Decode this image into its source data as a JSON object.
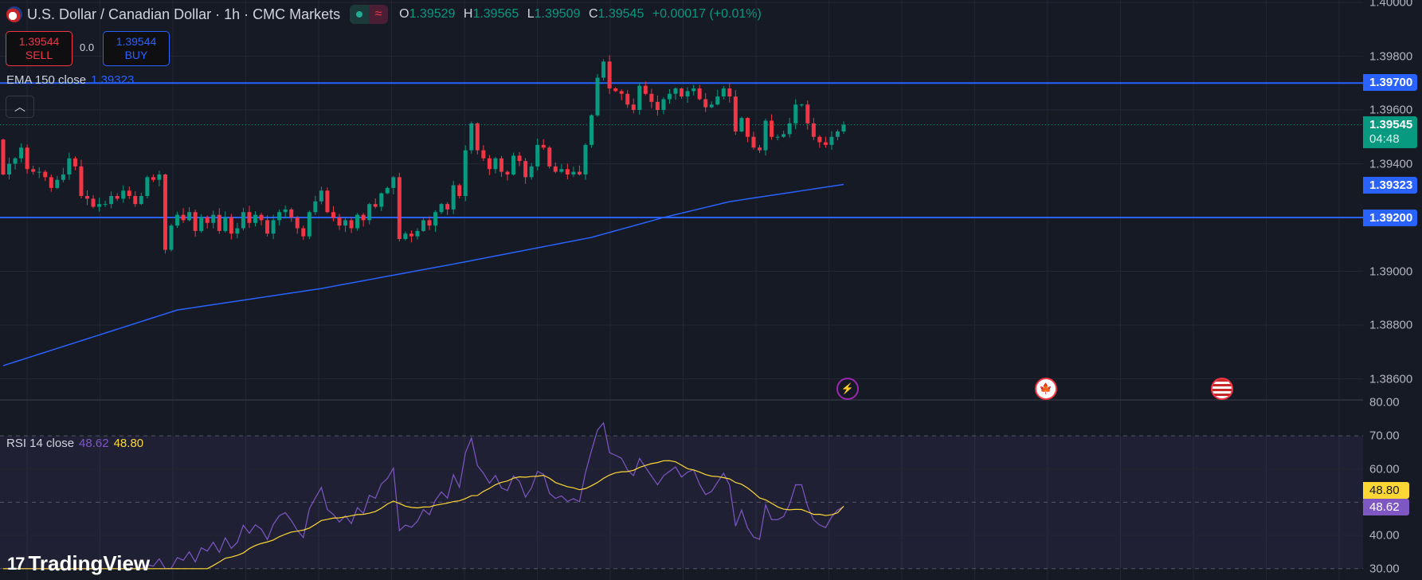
{
  "header": {
    "title": "U.S. Dollar / Canadian Dollar · 1h · CMC Markets",
    "ohlc": {
      "o_label": "O",
      "o": "1.39529",
      "h_label": "H",
      "h": "1.39565",
      "l_label": "L",
      "l": "1.39509",
      "c_label": "C",
      "c": "1.39545",
      "change": "+0.00017 (+0.01%)"
    }
  },
  "trade": {
    "sell_price": "1.39544",
    "sell_label": "SELL",
    "spread": "0.0",
    "buy_price": "1.39544",
    "buy_label": "BUY"
  },
  "ema_legend": {
    "label": "EMA 150 close",
    "value": "1.39323"
  },
  "rsi_legend": {
    "label": "RSI 14 close",
    "rsi": "48.62",
    "ma": "48.80"
  },
  "price_axis": {
    "labels": [
      "1.40000",
      "1.39800",
      "1.39600",
      "1.39400",
      "1.39000",
      "1.38800",
      "1.38600"
    ],
    "values": [
      1.4,
      1.398,
      1.396,
      1.394,
      1.39,
      1.388,
      1.386
    ]
  },
  "rsi_axis": {
    "labels": [
      "80.00",
      "70.00",
      "60.00",
      "40.00",
      "30.00"
    ],
    "values": [
      80,
      70,
      60,
      40,
      30
    ]
  },
  "badges": {
    "line_upper": "1.39700",
    "current": "1.39545",
    "countdown": "04:48",
    "ema": "1.39323",
    "line_lower": "1.39200",
    "rsi_ma": "48.80",
    "rsi": "48.62"
  },
  "colors": {
    "up": "#089981",
    "down": "#f23645",
    "line": "#2962ff",
    "rsi": "#7e57c2",
    "rsi_ma": "#fdd835",
    "bg": "#161a25"
  },
  "logo": "TradingView",
  "events": [
    "lightning-event",
    "canada-flag-event",
    "us-flag-event"
  ],
  "chart_data": {
    "type": "candlestick",
    "symbol": "USDCAD",
    "interval": "1h",
    "ylim": [
      1.3855,
      1.4005
    ],
    "horizontal_lines": [
      1.397,
      1.392
    ],
    "last_price": 1.39545,
    "first_open": 1.3949,
    "closes": [
      1.3936,
      1.394,
      1.3942,
      1.3946,
      1.3938,
      1.3937,
      1.3937,
      1.3935,
      1.3931,
      1.3934,
      1.3936,
      1.3942,
      1.3939,
      1.3928,
      1.3927,
      1.3924,
      1.3925,
      1.3925,
      1.3928,
      1.3927,
      1.393,
      1.3928,
      1.3925,
      1.3928,
      1.3935,
      1.3934,
      1.3936,
      1.3908,
      1.3917,
      1.3921,
      1.3919,
      1.3922,
      1.3915,
      1.392,
      1.3918,
      1.3921,
      1.3915,
      1.392,
      1.3914,
      1.3916,
      1.3922,
      1.3918,
      1.3921,
      1.3919,
      1.3914,
      1.3919,
      1.3922,
      1.3923,
      1.392,
      1.3916,
      1.3913,
      1.3922,
      1.3926,
      1.393,
      1.3922,
      1.392,
      1.3917,
      1.3919,
      1.3916,
      1.3921,
      1.3919,
      1.3925,
      1.3924,
      1.3929,
      1.3931,
      1.3935,
      1.3912,
      1.3914,
      1.3913,
      1.3915,
      1.3919,
      1.3917,
      1.3922,
      1.3925,
      1.3923,
      1.3932,
      1.3928,
      1.3945,
      1.3955,
      1.3945,
      1.3942,
      1.3938,
      1.3942,
      1.3937,
      1.3936,
      1.3943,
      1.3941,
      1.3935,
      1.3939,
      1.3947,
      1.3946,
      1.3939,
      1.3937,
      1.3938,
      1.3936,
      1.3937,
      1.3936,
      1.3947,
      1.3958,
      1.3972,
      1.3978,
      1.3968,
      1.3967,
      1.3966,
      1.3962,
      1.396,
      1.3969,
      1.3966,
      1.3963,
      1.396,
      1.3964,
      1.3966,
      1.3968,
      1.3965,
      1.3967,
      1.3968,
      1.3964,
      1.3961,
      1.3962,
      1.3965,
      1.3968,
      1.3965,
      1.3952,
      1.3957,
      1.395,
      1.3946,
      1.3945,
      1.3956,
      1.395,
      1.395,
      1.3951,
      1.3955,
      1.3962,
      1.3962,
      1.3955,
      1.395,
      1.3948,
      1.3947,
      1.395,
      1.3952,
      1.39545
    ],
    "ema150_points": [
      [
        0,
        1.38649
      ],
      [
        29,
        1.38856
      ],
      [
        53,
        1.38936
      ],
      [
        76,
        1.39031
      ],
      [
        98,
        1.39126
      ],
      [
        110,
        1.392
      ],
      [
        121,
        1.39259
      ],
      [
        140,
        1.39323
      ]
    ],
    "rsi": {
      "period": 14,
      "ma_period": 14,
      "ylim": [
        27,
        82
      ],
      "levels": [
        70,
        50,
        30
      ],
      "last": 48.62,
      "ma_last": 48.8
    }
  }
}
